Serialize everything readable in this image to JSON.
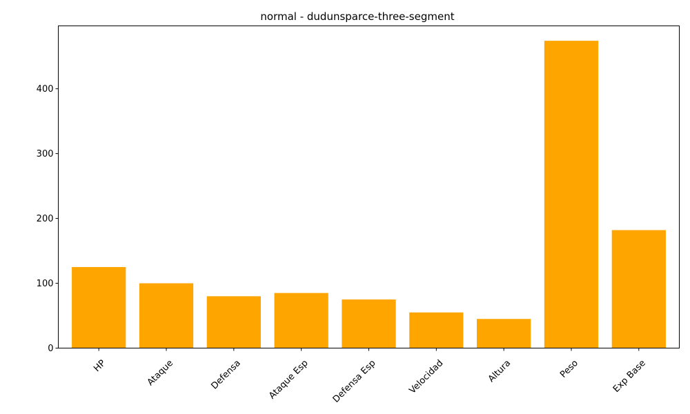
{
  "chart_data": {
    "type": "bar",
    "title": "normal - dudunsparce-three-segment",
    "xlabel": "",
    "ylabel": "",
    "categories": [
      "HP",
      "Ataque",
      "Defensa",
      "Ataque Esp",
      "Defensa Esp",
      "Velocidad",
      "Altura",
      "Peso",
      "Exp Base"
    ],
    "values": [
      125,
      100,
      80,
      85,
      75,
      55,
      45,
      474,
      182
    ],
    "ylim": [
      0,
      497
    ],
    "yticks": [
      0,
      100,
      200,
      300,
      400
    ],
    "bar_color": "#FFA500",
    "grid": false,
    "legend": "none"
  }
}
